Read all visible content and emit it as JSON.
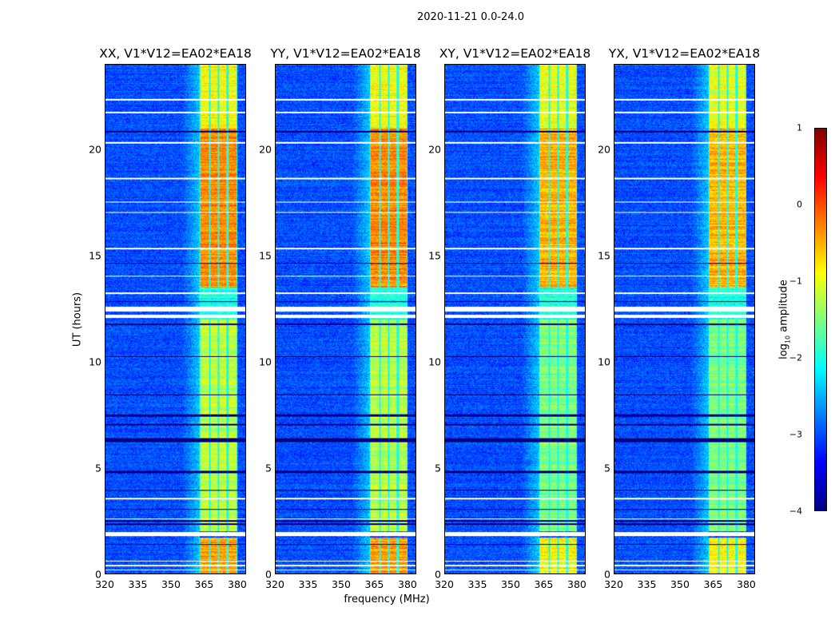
{
  "chart_data": {
    "type": "heatmap",
    "title": "2020-11-21 0.0-24.0",
    "xlabel": "frequency (MHz)",
    "ylabel": "UT (hours)",
    "xlim": [
      320,
      384
    ],
    "ylim": [
      0,
      24
    ],
    "xticks": [
      "320",
      "335",
      "350",
      "365",
      "380"
    ],
    "xtick_values": [
      320,
      335,
      350,
      365,
      380
    ],
    "yticks": [
      "0",
      "5",
      "10",
      "15",
      "20"
    ],
    "ytick_values": [
      0,
      5,
      10,
      15,
      20
    ],
    "panels": [
      {
        "title": "XX, V1*V12=EA02*EA18"
      },
      {
        "title": "YY, V1*V12=EA02*EA18"
      },
      {
        "title": "XY, V1*V12=EA02*EA18"
      },
      {
        "title": "YX, V1*V12=EA02*EA18"
      }
    ],
    "model": {
      "background_log10": -3.0,
      "rfi_subbands_mhz": [
        [
          363.5,
          367.5
        ],
        [
          368,
          371.5
        ],
        [
          372,
          375.5
        ],
        [
          376.5,
          380
        ]
      ],
      "rfi_levels_by_time": [
        {
          "t": [
            0,
            1.7
          ],
          "parallel": -0.4,
          "cross": -0.9
        },
        {
          "t": [
            2.0,
            12.0
          ],
          "parallel": -1.2,
          "cross": -1.5
        },
        {
          "t": [
            12.0,
            13.5
          ],
          "parallel": -2.0,
          "cross": -2.0
        },
        {
          "t": [
            13.5,
            21.0
          ],
          "parallel": -0.3,
          "cross": -0.5
        },
        {
          "t": [
            21.0,
            24.0
          ],
          "parallel": -0.9,
          "cross": -1.0
        }
      ],
      "flagged_hours": [
        [
          0.15,
          0.2
        ],
        [
          0.35,
          0.4
        ],
        [
          0.55,
          0.6
        ],
        [
          1.75,
          1.95
        ],
        [
          2.55,
          2.6
        ],
        [
          3.5,
          3.55
        ],
        [
          12.05,
          12.2
        ],
        [
          12.35,
          12.6
        ],
        [
          13.2,
          13.25
        ],
        [
          14.0,
          14.05
        ],
        [
          15.3,
          15.35
        ],
        [
          17.0,
          17.05
        ],
        [
          17.5,
          17.55
        ],
        [
          18.6,
          18.65
        ],
        [
          20.3,
          20.35
        ],
        [
          21.7,
          21.8
        ],
        [
          22.3,
          22.4
        ]
      ],
      "dropout_hours": [
        [
          1.35,
          1.4
        ],
        [
          2.3,
          2.35
        ],
        [
          2.45,
          2.5
        ],
        [
          3.0,
          3.05
        ],
        [
          3.9,
          3.95
        ],
        [
          4.75,
          4.85
        ],
        [
          6.2,
          6.4
        ],
        [
          7.0,
          7.05
        ],
        [
          7.4,
          7.5
        ],
        [
          8.4,
          8.45
        ],
        [
          10.2,
          10.25
        ],
        [
          11.7,
          11.8
        ],
        [
          12.8,
          12.85
        ],
        [
          14.6,
          14.65
        ],
        [
          20.8,
          20.9
        ]
      ]
    },
    "colorbar": {
      "label": "log10 amplitude",
      "label_base": "log",
      "label_sub": "10",
      "label_rest": " amplitude",
      "range": [
        -4,
        1
      ],
      "ticks": [
        "1",
        "0",
        "−1",
        "−2",
        "−3",
        "−4"
      ],
      "tick_values": [
        1,
        0,
        -1,
        -2,
        -3,
        -4
      ],
      "colormap": "jet"
    }
  }
}
